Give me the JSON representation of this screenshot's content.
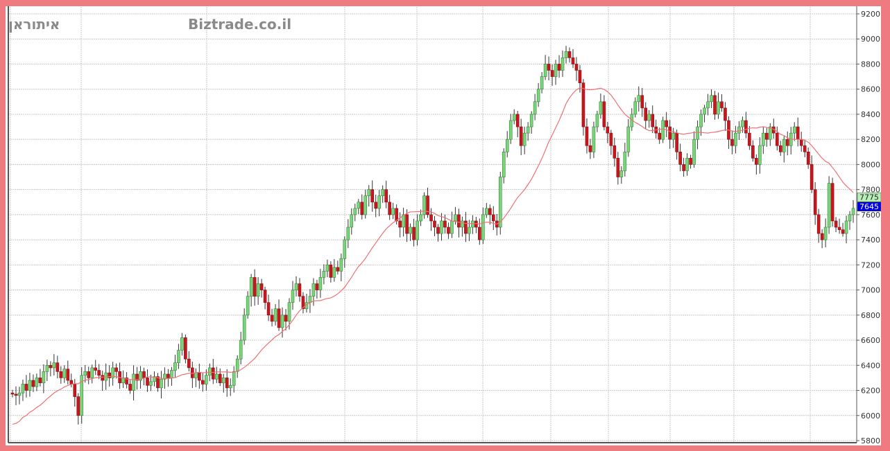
{
  "header": {
    "symbol_name": "איתוראן",
    "watermark": "Biztrade.co.il"
  },
  "colors": {
    "up": "#7ed37e",
    "down": "#c8161c",
    "ma": "#f07070",
    "last_price_bg": "#0000e0",
    "ma_label_bg": "#b8f0b8",
    "frame": "#ef7a80"
  },
  "chart_data": {
    "type": "candlestick",
    "ylim": [
      5800,
      9200
    ],
    "yticks": [
      5800,
      6000,
      6200,
      6400,
      6600,
      6800,
      7000,
      7200,
      7400,
      7600,
      7800,
      8000,
      8200,
      8400,
      8600,
      8800,
      9000,
      9200
    ],
    "grid": true,
    "closes": [
      6170,
      6160,
      6180,
      6250,
      6200,
      6280,
      6230,
      6300,
      6260,
      6350,
      6400,
      6380,
      6420,
      6350,
      6300,
      6370,
      6280,
      6250,
      6150,
      6000,
      6320,
      6350,
      6300,
      6380,
      6360,
      6320,
      6280,
      6340,
      6300,
      6380,
      6350,
      6260,
      6300,
      6250,
      6200,
      6330,
      6280,
      6350,
      6300,
      6240,
      6270,
      6310,
      6220,
      6290,
      6330,
      6300,
      6360,
      6420,
      6520,
      6620,
      6450,
      6380,
      6300,
      6340,
      6280,
      6250,
      6320,
      6380,
      6290,
      6330,
      6260,
      6300,
      6220,
      6240,
      6350,
      6450,
      6600,
      6800,
      6950,
      7100,
      6950,
      7050,
      7000,
      6900,
      6800,
      6750,
      6850,
      6700,
      6800,
      6750,
      6900,
      7000,
      7050,
      6950,
      6850,
      6900,
      6950,
      7050,
      7000,
      7100,
      7150,
      7200,
      7100,
      7180,
      7150,
      7250,
      7400,
      7500,
      7600,
      7650,
      7700,
      7600,
      7750,
      7800,
      7700,
      7650,
      7750,
      7800,
      7700,
      7600,
      7650,
      7550,
      7500,
      7600,
      7450,
      7500,
      7400,
      7550,
      7600,
      7750,
      7600,
      7550,
      7500,
      7450,
      7550,
      7500,
      7450,
      7550,
      7600,
      7500,
      7550,
      7450,
      7500,
      7550,
      7500,
      7400,
      7600,
      7650,
      7600,
      7550,
      7500,
      7900,
      8100,
      8200,
      8350,
      8400,
      8300,
      8150,
      8250,
      8300,
      8400,
      8500,
      8600,
      8700,
      8800,
      8750,
      8700,
      8800,
      8750,
      8850,
      8900,
      8850,
      8800,
      8750,
      8650,
      8300,
      8150,
      8100,
      8300,
      8400,
      8500,
      8300,
      8250,
      8150,
      8050,
      7900,
      7950,
      8100,
      8300,
      8400,
      8500,
      8550,
      8450,
      8350,
      8400,
      8300,
      8250,
      8200,
      8350,
      8300,
      8200,
      8250,
      8100,
      8000,
      7950,
      8050,
      8000,
      8200,
      8300,
      8400,
      8450,
      8500,
      8550,
      8400,
      8500,
      8450,
      8350,
      8200,
      8150,
      8250,
      8300,
      8350,
      8250,
      8150,
      8050,
      8000,
      8150,
      8250,
      8200,
      8300,
      8250,
      8150,
      8100,
      8200,
      8150,
      8250,
      8300,
      8200,
      8150,
      8100,
      8000,
      7800,
      7600,
      7450,
      7400,
      7500,
      7850,
      7550,
      7500,
      7480,
      7450,
      7550,
      7600,
      7650
    ],
    "moving_average_label": "7775",
    "last_price_label": "7645"
  }
}
